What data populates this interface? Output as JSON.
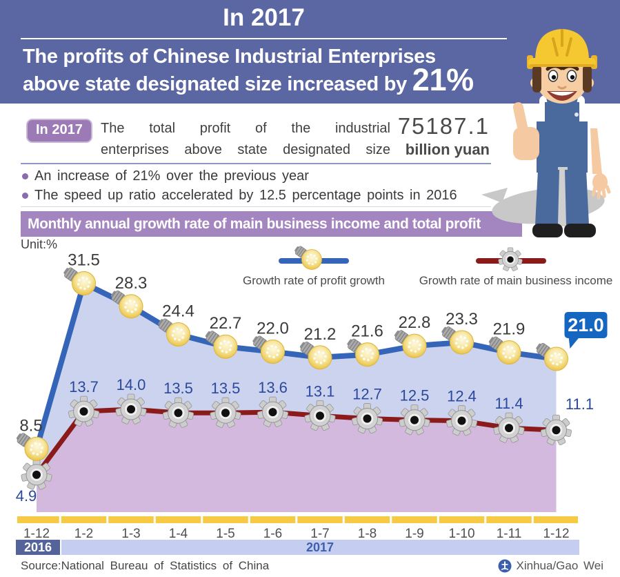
{
  "header": {
    "year_title": "In 2017",
    "subtitle_line1": "The profits of Chinese Industrial Enterprises",
    "subtitle_line2_prefix": "above state designated size increased by ",
    "subtitle_percent": "21%"
  },
  "summary": {
    "badge": "In 2017",
    "line1": "The total profit of the industrial",
    "line2": "enterprises above state designated size",
    "value": "75187.1",
    "value_unit": "billion yuan",
    "bullets": [
      "An increase of 21% over the previous year",
      "The speed up ratio accelerated by 12.5 percentage points in 2016"
    ]
  },
  "chart_banner": "Monthly annual growth rate of main business income and total profit",
  "chart_data": {
    "type": "line",
    "title": "Monthly annual growth rate of main business income and total profit",
    "unit_label": "Unit:%",
    "categories": [
      "1-12",
      "1-2",
      "1-3",
      "1-4",
      "1-5",
      "1-6",
      "1-7",
      "1-8",
      "1-9",
      "1-10",
      "1-11",
      "1-12"
    ],
    "period_groups": [
      {
        "label": "2016",
        "color": "#55639b",
        "text_color": "#ffffff"
      },
      {
        "label": "2017",
        "color": "#c5cdf0",
        "text_color": "#3c5fae"
      }
    ],
    "series": [
      {
        "name": "Growth rate of profit growth",
        "marker": "bulb-icon",
        "color": "#3465b8",
        "fill": "#ccd3ee",
        "values": [
          8.5,
          31.5,
          28.3,
          24.4,
          22.7,
          22.0,
          21.2,
          21.6,
          22.8,
          23.3,
          21.9,
          21.0
        ],
        "highlight_last": true
      },
      {
        "name": "Growth rate of main business income",
        "marker": "gear-icon",
        "color": "#8b1a1a",
        "fill": "#d2b9dd",
        "values": [
          4.9,
          13.7,
          14.0,
          13.5,
          13.5,
          13.6,
          13.1,
          12.7,
          12.5,
          12.4,
          11.4,
          11.1
        ]
      }
    ],
    "highlight_value_label": "21.0",
    "ylim": [
      0,
      36
    ],
    "grid": false,
    "legend_position": "top"
  },
  "footer": {
    "source": "Source:National Bureau of Statistics of China",
    "credit": "Xinhua/Gao Wei"
  },
  "colors": {
    "header_bg": "#5b67a3",
    "banner_bg": "#a385bf",
    "badge_bg": "#9b7ab6",
    "axis_yellow": "#f6ca45",
    "highlight_badge_blue": "#1566c1",
    "year2016_bg": "#55639b",
    "year2017_bg": "#c5cdf0"
  }
}
